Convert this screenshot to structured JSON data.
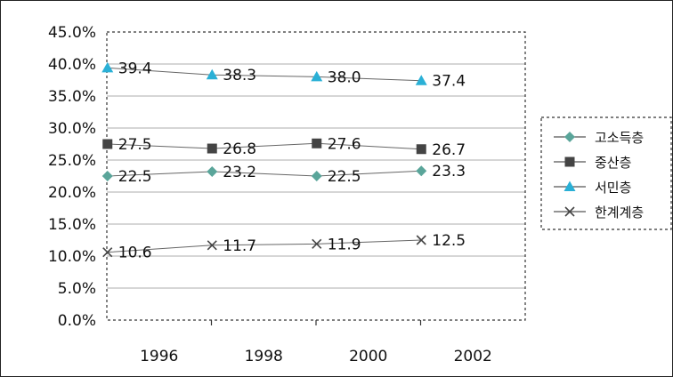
{
  "chart_data": {
    "type": "line",
    "categories": [
      "1996",
      "1998",
      "2000",
      "2002"
    ],
    "y_tick_labels": [
      "0.0%",
      "5.0%",
      "10.0%",
      "15.0%",
      "20.0%",
      "25.0%",
      "30.0%",
      "35.0%",
      "40.0%",
      "45.0%"
    ],
    "ylim": [
      0,
      45
    ],
    "grid": true,
    "legend_position": "right",
    "series": [
      {
        "name": "고소득층",
        "marker": "diamond",
        "color": "#5aa59a",
        "values": [
          22.5,
          23.2,
          22.5,
          23.3
        ],
        "labels": [
          "22.5",
          "23.2",
          "22.5",
          "23.3"
        ]
      },
      {
        "name": "중산층",
        "marker": "square",
        "color": "#444444",
        "values": [
          27.5,
          26.8,
          27.6,
          26.7
        ],
        "labels": [
          "27.5",
          "26.8",
          "27.6",
          "26.7"
        ]
      },
      {
        "name": "서민층",
        "marker": "triangle",
        "color": "#2ab0d6",
        "values": [
          39.4,
          38.3,
          38.0,
          37.4
        ],
        "labels": [
          "39.4",
          "38.3",
          "38.0",
          "37.4"
        ]
      },
      {
        "name": "한계계층",
        "marker": "x",
        "color": "#444444",
        "values": [
          10.6,
          11.7,
          11.9,
          12.5
        ],
        "labels": [
          "10.6",
          "11.7",
          "11.9",
          "12.5"
        ]
      }
    ]
  }
}
